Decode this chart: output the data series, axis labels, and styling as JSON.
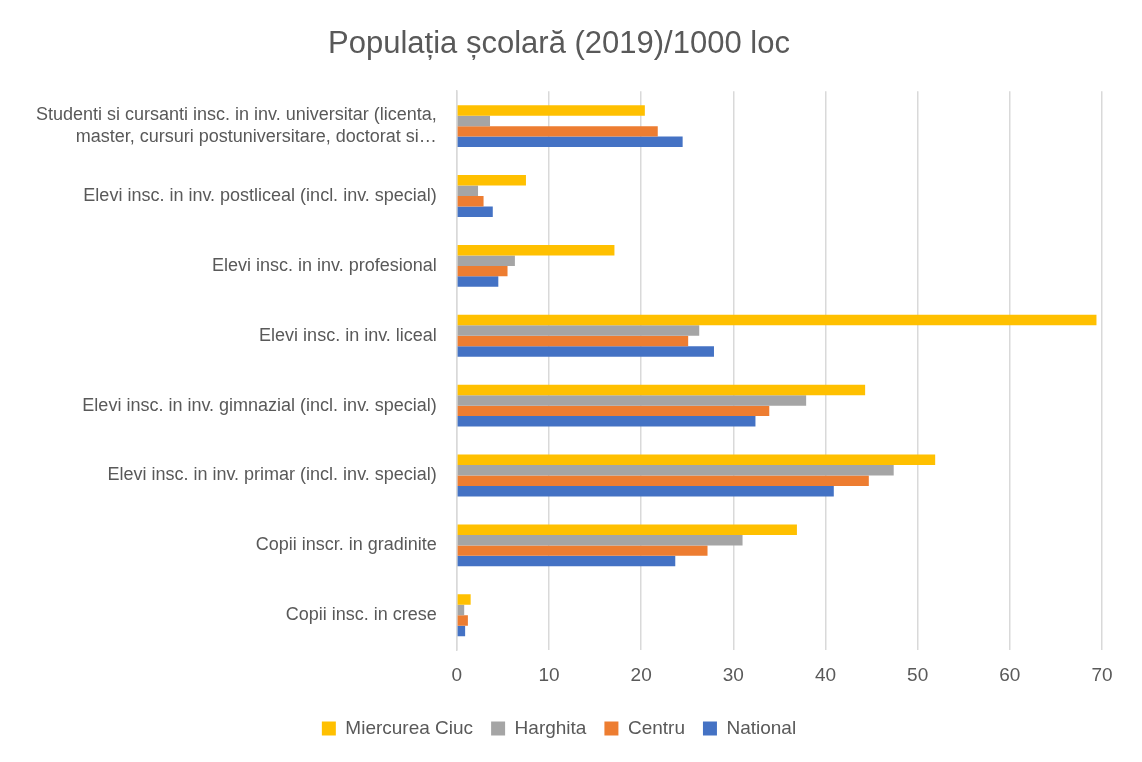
{
  "chart_data": {
    "type": "bar",
    "orientation": "horizontal",
    "title": "Populația școlară (2019)/1000 loc",
    "categories": [
      "Studenti si cursanti insc. in inv. universitar (licenta, master, cursuri postuniversitare, doctorat si…",
      "Elevi insc. in inv. postliceal (incl. inv. special)",
      "Elevi insc. in inv. profesional",
      "Elevi insc. in inv. liceal",
      "Elevi insc. in inv. gimnazial (incl. inv. special)",
      "Elevi insc. in inv. primar (incl. inv. special)",
      "Copii inscr. in gradinite",
      "Copii insc. in crese"
    ],
    "series": [
      {
        "name": "Miercurea Ciuc",
        "color": "#ffc000",
        "values": [
          20.4,
          7.5,
          17.1,
          69.4,
          44.3,
          51.9,
          36.9,
          1.5
        ]
      },
      {
        "name": "Harghita",
        "color": "#a5a5a5",
        "values": [
          3.6,
          2.3,
          6.3,
          26.3,
          37.9,
          47.4,
          31.0,
          0.8
        ]
      },
      {
        "name": "Centru",
        "color": "#ed7d31",
        "values": [
          21.8,
          2.9,
          5.5,
          25.1,
          33.9,
          44.7,
          27.2,
          1.2
        ]
      },
      {
        "name": "National",
        "color": "#4472c4",
        "values": [
          24.5,
          3.9,
          4.5,
          27.9,
          32.4,
          40.9,
          23.7,
          0.9
        ]
      }
    ],
    "xlim": [
      0,
      70
    ],
    "xticks": [
      0,
      10,
      20,
      30,
      40,
      50,
      60,
      70
    ],
    "grid": "x",
    "legend": "bottom"
  }
}
